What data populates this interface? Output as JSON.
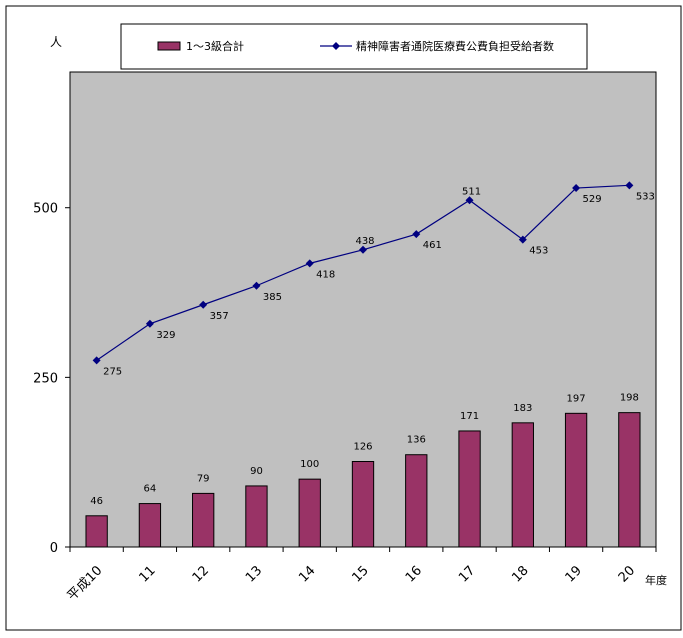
{
  "chart_data": {
    "type": "bar",
    "categories": [
      "平成10",
      "11",
      "12",
      "13",
      "14",
      "15",
      "16",
      "17",
      "18",
      "19",
      "20"
    ],
    "x_unit": "年度",
    "y_unit": "人",
    "ylim": [
      0,
      700
    ],
    "yticks": [
      0,
      250,
      500
    ],
    "grid": false,
    "legend_position": "top",
    "series": [
      {
        "name": "1～3級合計",
        "type": "bar",
        "color": "#993366",
        "values": [
          46,
          64,
          79,
          90,
          100,
          126,
          136,
          171,
          183,
          197,
          198
        ]
      },
      {
        "name": "精神障害者通院医療費公費負担受給者数",
        "type": "line",
        "color": "#000080",
        "marker": "diamond",
        "values": [
          275,
          329,
          357,
          385,
          418,
          438,
          461,
          511,
          453,
          529,
          533
        ]
      }
    ],
    "plot_background": "#c0c0c0"
  }
}
